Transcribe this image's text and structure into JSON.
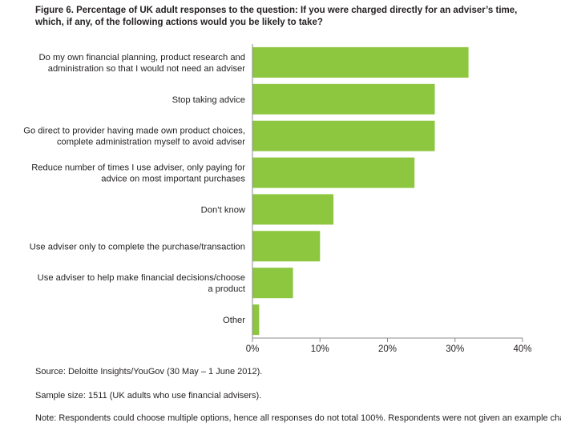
{
  "figure": {
    "title": "Figure 6. Percentage of UK adult responses to the question: If you were charged directly for an adviser’s time, which, if any, of the following actions would you be likely to take?",
    "source": "Source: Deloitte Insights/YouGov (30 May – 1 June 2012).",
    "sample": "Sample size: 1511 (UK adults who use financial advisers).",
    "note": "Note: Respondents could choose multiple options, hence all responses do not total 100%. Respondents were not given an example charge."
  },
  "chart_data": {
    "type": "bar",
    "orientation": "horizontal",
    "categories": [
      [
        "Do my own financial planning, product research and",
        "administration so that I would not need an adviser"
      ],
      [
        "Stop taking advice"
      ],
      [
        "Go direct to provider having made own product choices,",
        "complete administration myself to avoid adviser"
      ],
      [
        "Reduce number of times I use adviser, only paying for",
        "advice on most important purchases"
      ],
      [
        "Don’t know"
      ],
      [
        "Use adviser only to complete the purchase/transaction"
      ],
      [
        "Use adviser to help make financial decisions/choose",
        "a product"
      ],
      [
        "Other"
      ]
    ],
    "values": [
      32,
      27,
      27,
      24,
      12,
      10,
      6,
      1
    ],
    "xlim": [
      0,
      40
    ],
    "xticks": [
      0,
      10,
      20,
      30,
      40
    ],
    "xtick_labels": [
      "0%",
      "10%",
      "20%",
      "30%",
      "40%"
    ],
    "bar_color": "#8dc63f",
    "axis_color": "#8c8c8c",
    "grid": false,
    "legend": "none"
  }
}
